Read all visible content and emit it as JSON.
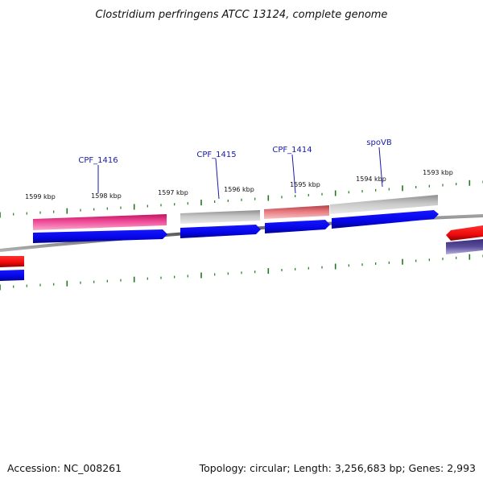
{
  "title": "Clostridium perfringens ATCC 13124, complete genome",
  "footer": {
    "accession": "Accession: NC_008261",
    "summary": "Topology: circular; Length: 3,256,683 bp; Genes: 2,993"
  },
  "kbp_labels": [
    "1599 kbp",
    "1598 kbp",
    "1597 kbp",
    "1596 kbp",
    "1595 kbp",
    "1594 kbp",
    "1593 kbp"
  ],
  "gene_labels": [
    "CPF_1416",
    "CPF_1415",
    "CPF_1414",
    "spoVB"
  ],
  "colors": {
    "pink": "#e8277f",
    "gray": "#bdbdbd",
    "salmon": "#e07075",
    "blue": "#0a0aee",
    "red": "#ee1111",
    "purple": "#52448f",
    "backbone": "#7a7a7a",
    "tick": "#1f7a1f",
    "label": "#1a1aa8"
  }
}
